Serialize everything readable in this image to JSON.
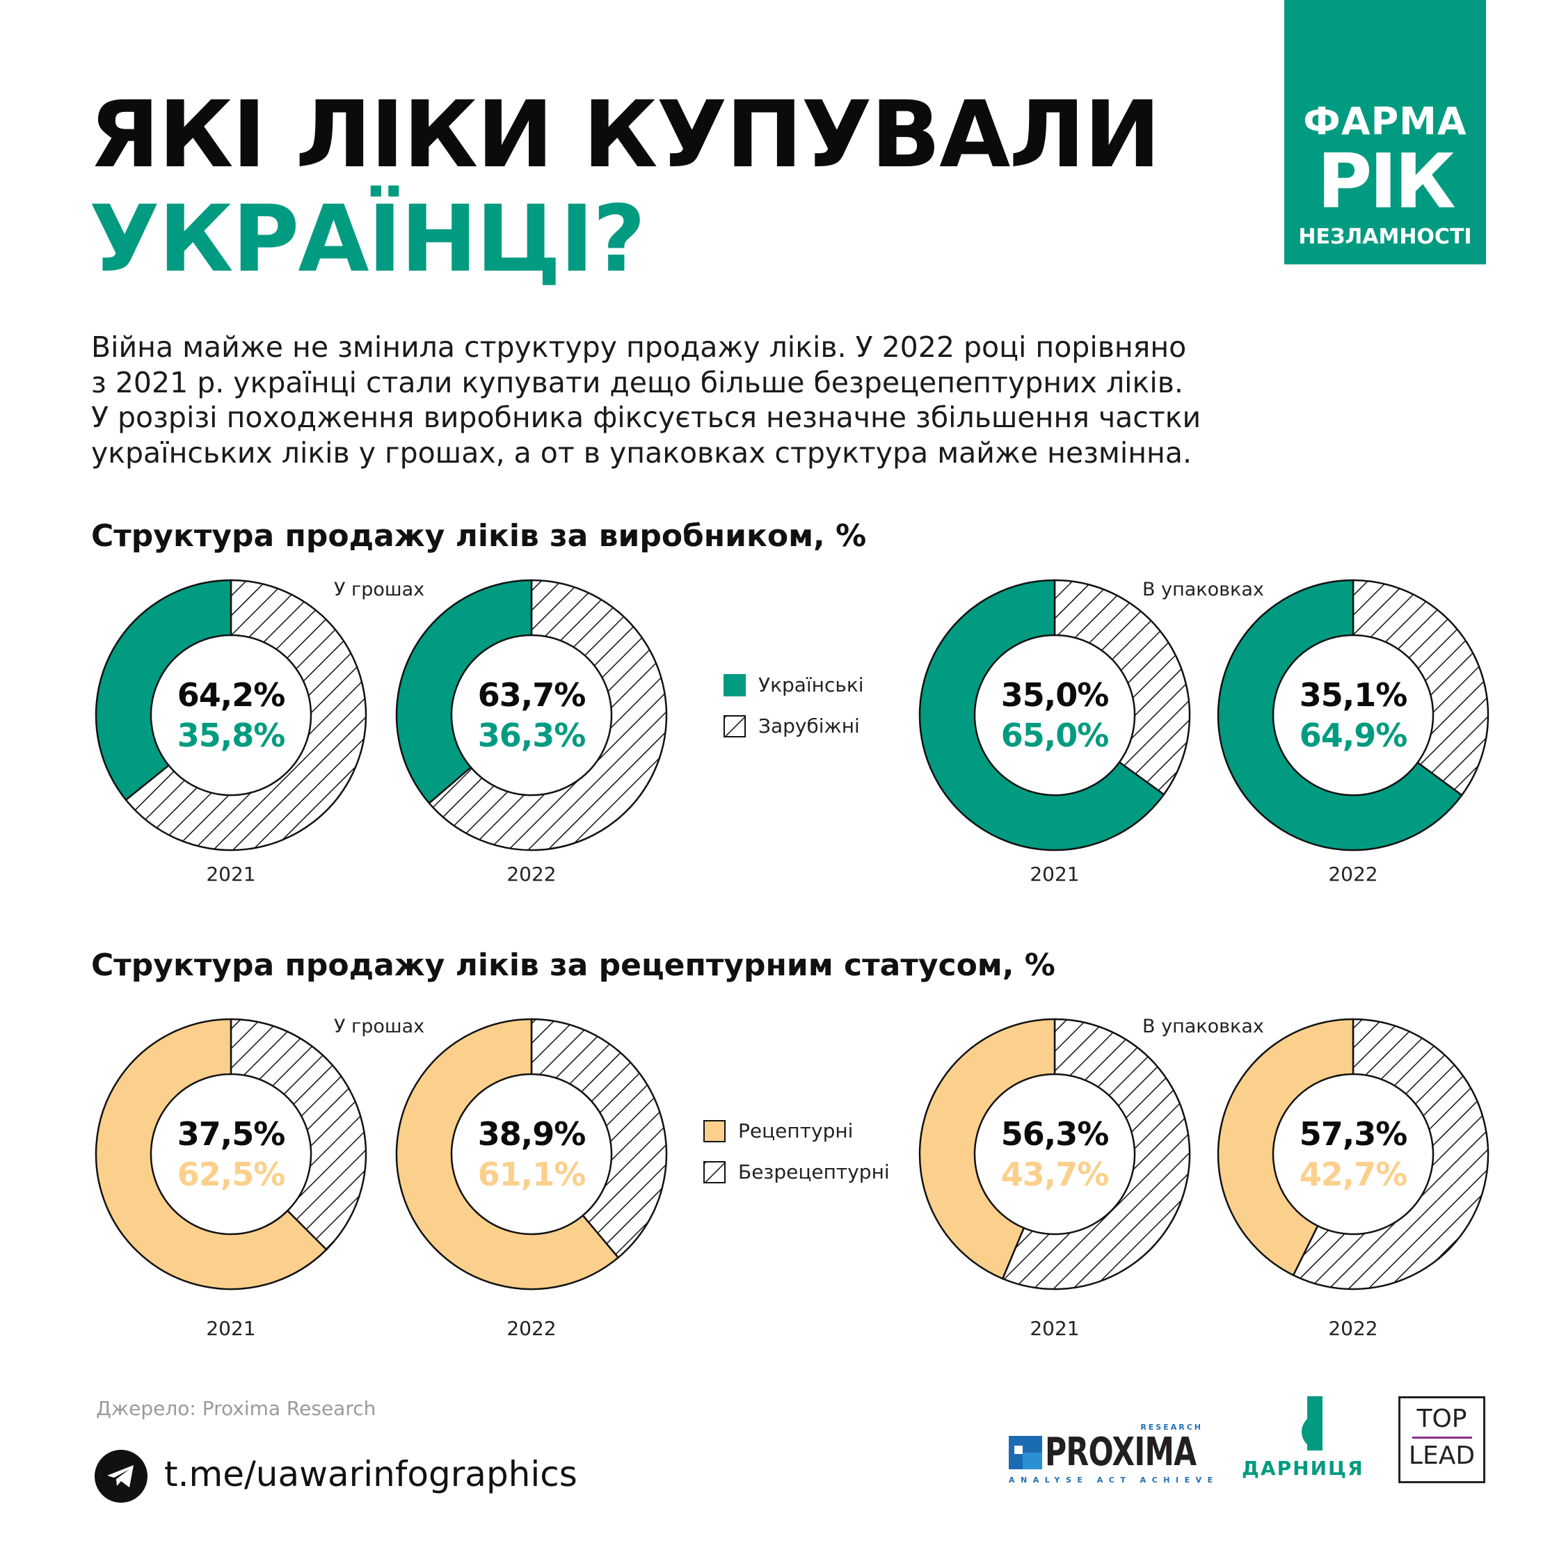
{
  "header": {
    "title_line1": "ЯКІ ЛІКИ КУПУВАЛИ",
    "title_line2": "УКРАЇНЦІ?",
    "logo": {
      "line1": "ФАРМА",
      "line2": "РІК",
      "line3": "НЕЗЛАМНОСТІ"
    }
  },
  "intro": [
    "Війна майже не змінила структуру продажу ліків. У 2022 році порівняно",
    "з 2021 р. українці стали купувати дещо більше безрецепептурних ліків.",
    "У розрізі походження виробника фіксується незначне збільшення частки",
    "українських ліків у грошах, а от в упаковках структура майже незмінна."
  ],
  "colors": {
    "teal": "#009b80",
    "yellow": "#fbd08c",
    "hatch": "#111111"
  },
  "chart_data": [
    {
      "type": "pie",
      "title": "Структура продажу ліків за виробником, %",
      "legend": [
        {
          "name": "Українські",
          "fill": "teal"
        },
        {
          "name": "Зарубіжні",
          "fill": "hatched"
        }
      ],
      "groups": [
        {
          "label": "У грошах",
          "charts": [
            {
              "year": "2021",
              "hatched": 64.2,
              "colored": 35.8,
              "hatched_label": "64,2%",
              "colored_label": "35,8%"
            },
            {
              "year": "2022",
              "hatched": 63.7,
              "colored": 36.3,
              "hatched_label": "63,7%",
              "colored_label": "36,3%"
            }
          ]
        },
        {
          "label": "В упаковках",
          "charts": [
            {
              "year": "2021",
              "hatched": 35.0,
              "colored": 65.0,
              "hatched_label": "35,0%",
              "colored_label": "65,0%"
            },
            {
              "year": "2022",
              "hatched": 35.1,
              "colored": 64.9,
              "hatched_label": "35,1%",
              "colored_label": "64,9%"
            }
          ]
        }
      ]
    },
    {
      "type": "pie",
      "title": "Структура продажу ліків за рецептурним статусом, %",
      "legend": [
        {
          "name": "Рецептурні",
          "fill": "yellow"
        },
        {
          "name": "Безрецептурні",
          "fill": "hatched"
        }
      ],
      "groups": [
        {
          "label": "У грошах",
          "charts": [
            {
              "year": "2021",
              "hatched": 37.5,
              "colored": 62.5,
              "hatched_label": "37,5%",
              "colored_label": "62,5%"
            },
            {
              "year": "2022",
              "hatched": 38.9,
              "colored": 61.1,
              "hatched_label": "38,9%",
              "colored_label": "61,1%"
            }
          ]
        },
        {
          "label": "В упаковках",
          "charts": [
            {
              "year": "2021",
              "hatched": 56.3,
              "colored": 43.7,
              "hatched_label": "56,3%",
              "colored_label": "43,7%"
            },
            {
              "year": "2022",
              "hatched": 57.3,
              "colored": 42.7,
              "hatched_label": "57,3%",
              "colored_label": "42,7%"
            }
          ]
        }
      ]
    }
  ],
  "footer": {
    "source": "Джерело: Proxima Research",
    "telegram_link": "t.me/uawarinfographics",
    "logos": {
      "proxima": {
        "name": "PROXIMA",
        "sub_top": "RESEARCH",
        "tagline": "ANALYSE ACT ACHIEVE"
      },
      "darnitsa": {
        "name": "ДАРНИЦЯ"
      },
      "toplead": {
        "line1": "TOP",
        "line2": "LEAD"
      }
    }
  }
}
